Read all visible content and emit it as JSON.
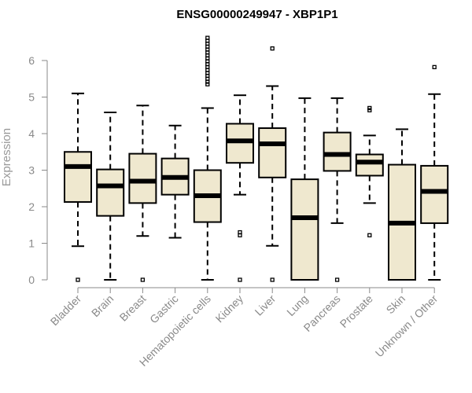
{
  "chart_data": {
    "type": "boxplot",
    "title": "ENSG00000249947 - XBP1P1",
    "ylabel": "Expression",
    "ylim": [
      0,
      6.6
    ],
    "yticks": [
      0,
      1,
      2,
      3,
      4,
      5,
      6
    ],
    "box_fill": "#efe8cf",
    "categories": [
      "Bladder",
      "Brain",
      "Breast",
      "Gastric",
      "Hematopoietic cells",
      "Kidney",
      "Liver",
      "Lung",
      "Pancreas",
      "Prostate",
      "Skin",
      "Unknown / Other"
    ],
    "boxes": [
      {
        "min": 0.92,
        "q1": 2.13,
        "median": 3.1,
        "q3": 3.5,
        "max": 5.1,
        "outliers": [
          0
        ]
      },
      {
        "min": 0,
        "q1": 1.75,
        "median": 2.57,
        "q3": 3.02,
        "max": 4.58,
        "outliers": []
      },
      {
        "min": 1.2,
        "q1": 2.1,
        "median": 2.7,
        "q3": 3.45,
        "max": 4.77,
        "outliers": [
          0
        ]
      },
      {
        "min": 1.15,
        "q1": 2.33,
        "median": 2.8,
        "q3": 3.32,
        "max": 4.22,
        "outliers": []
      },
      {
        "min": 0,
        "q1": 1.58,
        "median": 2.3,
        "q3": 3.0,
        "max": 4.7,
        "outliers": [
          5.35,
          5.42,
          5.5,
          5.58,
          5.66,
          5.74,
          5.82,
          5.9,
          5.98,
          6.06,
          6.14,
          6.22,
          6.3,
          6.38,
          6.46,
          6.54,
          6.62
        ]
      },
      {
        "min": 2.33,
        "q1": 3.2,
        "median": 3.8,
        "q3": 4.27,
        "max": 5.05,
        "outliers": [
          1.22,
          1.3,
          0
        ]
      },
      {
        "min": 0.93,
        "q1": 2.8,
        "median": 3.72,
        "q3": 4.15,
        "max": 5.3,
        "outliers": [
          6.33,
          0
        ]
      },
      {
        "min": 0,
        "q1": 0,
        "median": 1.7,
        "q3": 2.75,
        "max": 4.97,
        "outliers": []
      },
      {
        "min": 1.55,
        "q1": 2.98,
        "median": 3.43,
        "q3": 4.03,
        "max": 4.97,
        "outliers": [
          0
        ]
      },
      {
        "min": 2.1,
        "q1": 2.85,
        "median": 3.22,
        "q3": 3.43,
        "max": 3.95,
        "outliers": [
          4.64,
          4.7,
          1.22
        ]
      },
      {
        "min": 0,
        "q1": 0,
        "median": 1.55,
        "q3": 3.15,
        "max": 4.12,
        "outliers": []
      },
      {
        "min": 0,
        "q1": 1.55,
        "median": 2.42,
        "q3": 3.12,
        "max": 5.08,
        "outliers": [
          5.82
        ]
      }
    ]
  }
}
